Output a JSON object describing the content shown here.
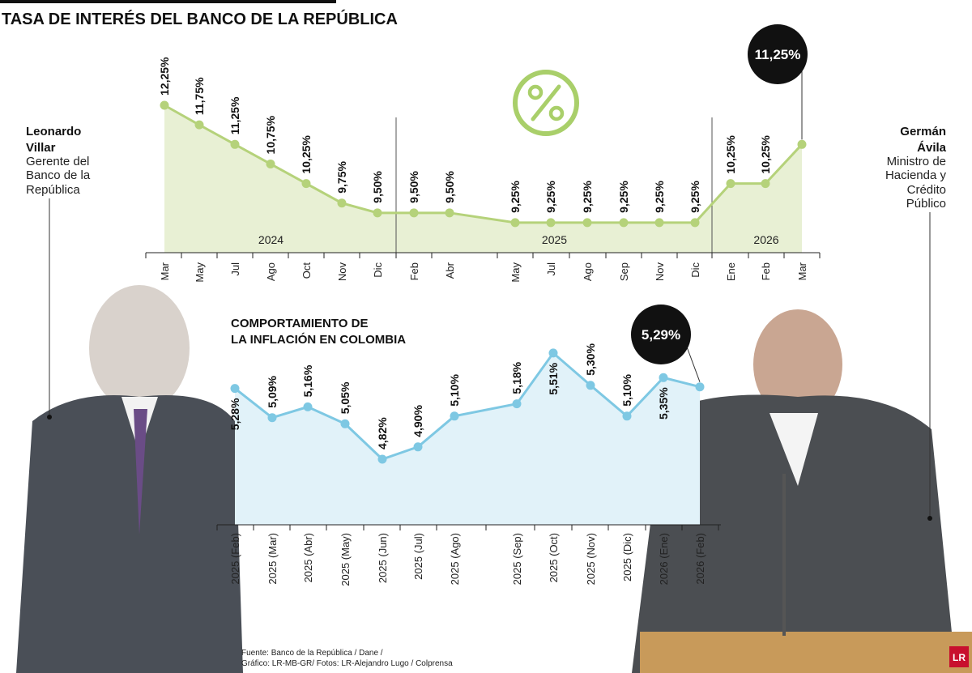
{
  "title": "TASA DE INTERÉS DEL BANCO DE LA REPÚBLICA",
  "people": {
    "left": {
      "name_line1": "Leonardo",
      "name_line2": "Villar",
      "role_lines": [
        "Gerente del",
        "Banco de la",
        "República"
      ]
    },
    "right": {
      "name_line1": "Germán",
      "name_line2": "Ávila",
      "role_lines": [
        "Ministro de",
        "Hacienda y",
        "Crédito",
        "Público"
      ]
    }
  },
  "icons": {
    "percent": "percent-icon",
    "logo": "LR"
  },
  "colors": {
    "rate_line": "#b5d27a",
    "rate_fill": "#e8f0d4",
    "inflation_line": "#7ec8e3",
    "inflation_fill": "#e1f2f9",
    "badge": "#111111"
  },
  "source": {
    "line1": "Fuente: Banco de la República / Dane /",
    "line2": "Gráfico: LR-MB-GR/ Fotos: LR-Alejandro Lugo /  Colprensa"
  },
  "chart_data": [
    {
      "type": "line",
      "title": "TASA DE INTERÉS DEL BANCO DE LA REPÚBLICA",
      "categories": [
        "Mar",
        "May",
        "Jul",
        "Ago",
        "Oct",
        "Nov",
        "Dic",
        "Feb",
        "Abr",
        "May",
        "Jul",
        "Ago",
        "Sep",
        "Nov",
        "Dic",
        "Ene",
        "Feb",
        "Mar"
      ],
      "years": [
        {
          "label": "2024",
          "from": 0,
          "to": 6
        },
        {
          "label": "2025",
          "from": 7,
          "to": 14
        },
        {
          "label": "2026",
          "from": 15,
          "to": 17
        }
      ],
      "values": [
        12.25,
        11.75,
        11.25,
        10.75,
        10.25,
        9.75,
        9.5,
        9.5,
        9.5,
        9.25,
        9.25,
        9.25,
        9.25,
        9.25,
        9.25,
        10.25,
        10.25,
        11.25
      ],
      "value_labels": [
        "12,25%",
        "11,75%",
        "11,25%",
        "10,75%",
        "10,25%",
        "9,75%",
        "9,50%",
        "9,50%",
        "9,50%",
        "9,25%",
        "9,25%",
        "9,25%",
        "9,25%",
        "9,25%",
        "9,25%",
        "10,25%",
        "10,25%",
        ""
      ],
      "highlight": {
        "index": 17,
        "label": "11,25%"
      },
      "grid": false
    },
    {
      "type": "line",
      "title": "COMPORTAMIENTO DE LA INFLACIÓN EN COLOMBIA",
      "title_lines": [
        "COMPORTAMIENTO DE",
        "LA INFLACIÓN EN COLOMBIA"
      ],
      "categories": [
        "2025 (Feb)",
        "2025 (Mar)",
        "2025 (Abr)",
        "2025 (May)",
        "2025 (Jun)",
        "2025 (Jul)",
        "2025 (Ago)",
        "2025 (Sep)",
        "2025 (Oct)",
        "2025 (Nov)",
        "2025 (Dic)",
        "2026 (Ene)",
        "2026 (Feb)"
      ],
      "values": [
        5.28,
        5.09,
        5.16,
        5.05,
        4.82,
        4.9,
        5.1,
        5.18,
        5.51,
        5.3,
        5.1,
        5.35,
        5.29
      ],
      "value_labels": [
        "5,28%",
        "5,09%",
        "5,16%",
        "5,05%",
        "4,82%",
        "4,90%",
        "5,10%",
        "5,18%",
        "5,51%",
        "5,30%",
        "5,10%",
        "5,35%",
        ""
      ],
      "highlight": {
        "index": 12,
        "label": "5,29%"
      },
      "grid": false
    }
  ]
}
